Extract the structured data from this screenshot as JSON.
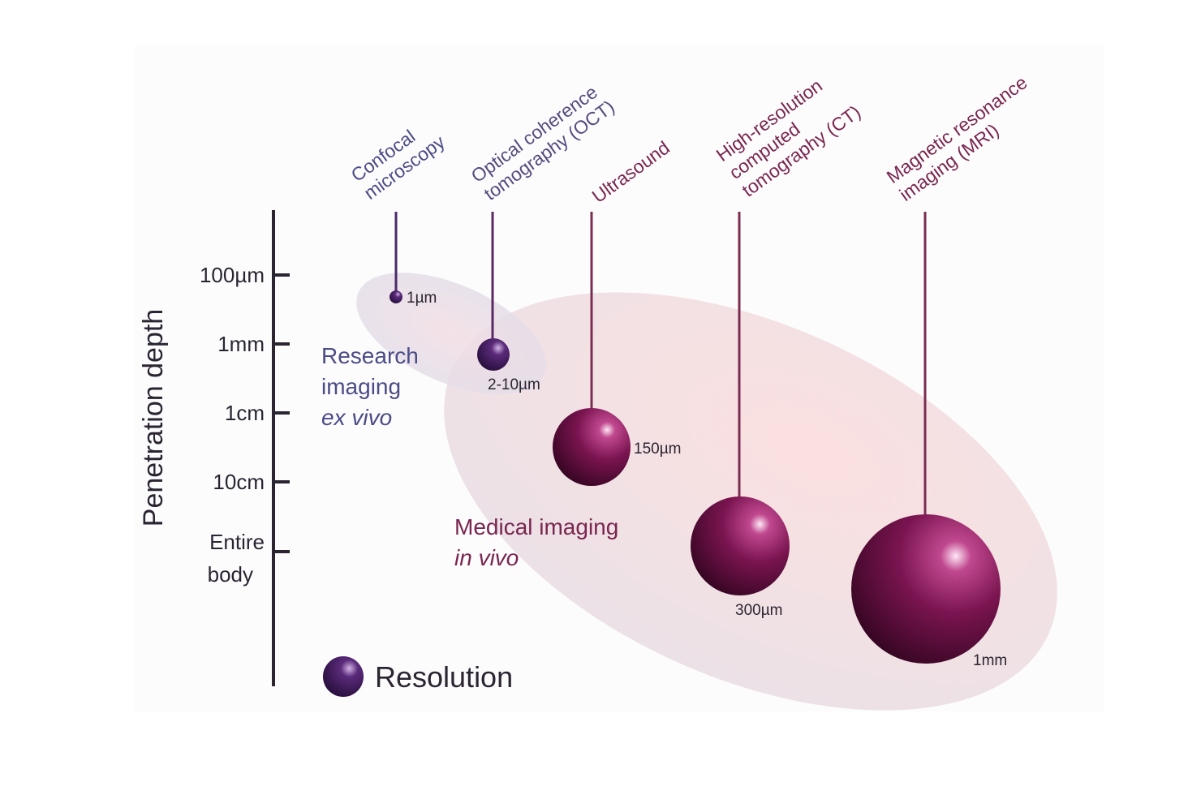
{
  "colors": {
    "axis_left": "#4a3f7a",
    "axis_right": "#7a2e52",
    "sphere": "#7a1450",
    "research_region": "#e7e3ee",
    "medical_region": "#f0e2e6",
    "research_text": "#4b4b86",
    "medical_text": "#7a2650"
  },
  "axis": {
    "title": "Penetration depth",
    "depth_levels": [
      {
        "label": "100µm"
      },
      {
        "label": "1mm"
      },
      {
        "label": "1cm"
      },
      {
        "label": "10cm"
      },
      {
        "label_line1": "Entire",
        "label_line2": "body"
      }
    ]
  },
  "techniques": [
    {
      "line1": "Confocal",
      "line2": "microscopy",
      "line3": "",
      "resolution": "1µm"
    },
    {
      "line1": "Optical coherence",
      "line2": "tomography (OCT)",
      "line3": "",
      "resolution": "2-10µm"
    },
    {
      "line1": "Ultrasound",
      "line2": "",
      "line3": "",
      "resolution": "150µm"
    },
    {
      "line1": "High-resolution",
      "line2": "computed",
      "line3": "tomography (CT)",
      "resolution": "300µm"
    },
    {
      "line1": "Magnetic resonance",
      "line2": "imaging (MRI)",
      "line3": "",
      "resolution": "1mm"
    }
  ],
  "regions": {
    "research": {
      "line1": "Research",
      "line2": "imaging",
      "line3": "ex vivo"
    },
    "medical": {
      "line1": "Medical imaging",
      "line2": "in vivo"
    }
  },
  "legend": {
    "label": "Resolution"
  }
}
